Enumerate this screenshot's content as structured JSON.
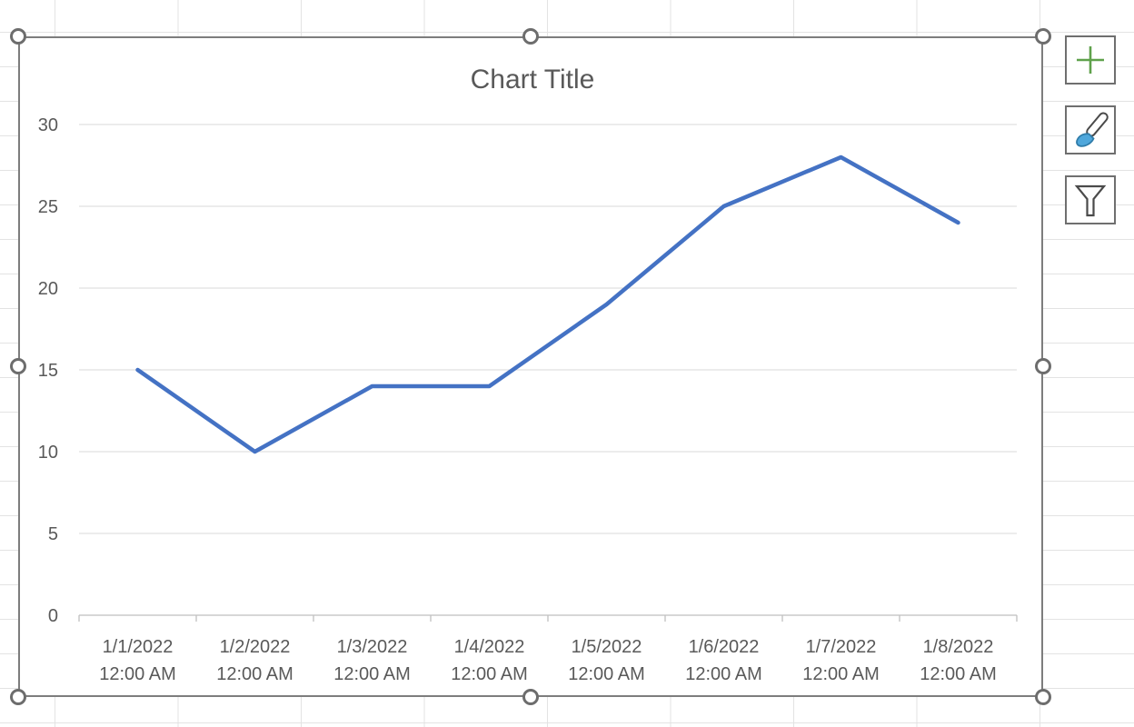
{
  "chart_data": {
    "type": "line",
    "title": "Chart Title",
    "categories": [
      {
        "date": "1/1/2022",
        "time": "12:00 AM"
      },
      {
        "date": "1/2/2022",
        "time": "12:00 AM"
      },
      {
        "date": "1/3/2022",
        "time": "12:00 AM"
      },
      {
        "date": "1/4/2022",
        "time": "12:00 AM"
      },
      {
        "date": "1/5/2022",
        "time": "12:00 AM"
      },
      {
        "date": "1/6/2022",
        "time": "12:00 AM"
      },
      {
        "date": "1/7/2022",
        "time": "12:00 AM"
      },
      {
        "date": "1/8/2022",
        "time": "12:00 AM"
      }
    ],
    "values": [
      15,
      10,
      14,
      14,
      19,
      25,
      28,
      24
    ],
    "ylim": [
      0,
      30
    ],
    "yticks": [
      0,
      5,
      10,
      15,
      20,
      25,
      30
    ],
    "xlabel": "",
    "ylabel": "",
    "grid": true,
    "legend": "none",
    "series_color": "#4472C4"
  },
  "chart_tools": {
    "buttons": [
      {
        "name": "chart-elements",
        "icon": "plus-icon"
      },
      {
        "name": "chart-styles",
        "icon": "paintbrush-icon"
      },
      {
        "name": "chart-filters",
        "icon": "funnel-icon"
      }
    ]
  },
  "selection": {
    "handle_count": 8
  },
  "colors": {
    "series": "#4472C4",
    "text": "#595959",
    "gridline": "#D9D9D9",
    "axis": "#BFBFBF",
    "frame_border": "#7D7D7D",
    "handle": "#6D6D6D",
    "sheet_gridline": "#E3E3E3",
    "plus_green": "#5FA14B",
    "brush_blue": "#4FA7DB",
    "icon_gray": "#4A4A4A"
  }
}
